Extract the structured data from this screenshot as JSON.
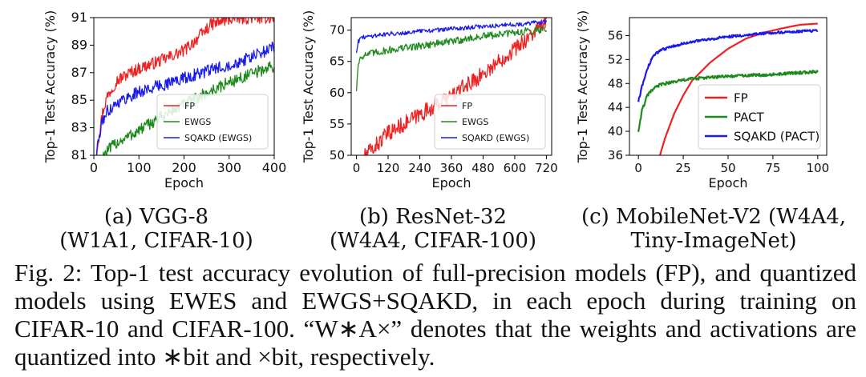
{
  "figure": {
    "caption": "Fig. 2: Top-1 test accuracy evolution of full-precision models (FP), and quantized models using EWES and EWGS+SQAKD, in each epoch during training on CIFAR-10 and CIFAR-100. “W∗A×” denotes that the weights and activations are quantized into ∗bit and ×bit, respectively."
  },
  "colors": {
    "FP": "#ee2222",
    "low_bit": "#1e8a1e",
    "SQAKD": "#1a1aee"
  },
  "chart_data": [
    {
      "type": "line",
      "subcaption": "(a) VGG-8\n(W1A1, CIFAR-10)",
      "xlabel": "Epoch",
      "ylabel": "Top-1 Test Accuracy (%)",
      "xlim": [
        0,
        400
      ],
      "ylim": [
        81,
        91
      ],
      "xticks": [
        0,
        100,
        200,
        300,
        400
      ],
      "yticks": [
        81,
        83,
        85,
        87,
        89,
        91
      ],
      "legend": "lower-right",
      "legend_size": "small",
      "series": [
        {
          "name": "FP",
          "color": "#ee2222",
          "noise": 0.45,
          "x": [
            5,
            10,
            20,
            30,
            50,
            80,
            100,
            150,
            200,
            230,
            260,
            300,
            350,
            400
          ],
          "y": [
            81.0,
            82.2,
            84.2,
            85.3,
            86.4,
            87.0,
            87.3,
            87.9,
            88.6,
            89.5,
            90.5,
            90.9,
            91.0,
            91.0
          ]
        },
        {
          "name": "EWGS",
          "color": "#1e8a1e",
          "noise": 0.45,
          "x": [
            20,
            30,
            50,
            100,
            150,
            200,
            250,
            300,
            350,
            400
          ],
          "y": [
            81.0,
            81.3,
            81.9,
            82.8,
            83.8,
            84.7,
            85.5,
            86.3,
            86.9,
            87.5
          ]
        },
        {
          "name": "SQAKD (EWGS)",
          "color": "#1a1aee",
          "noise": 0.45,
          "x": [
            5,
            10,
            20,
            30,
            50,
            100,
            150,
            200,
            250,
            300,
            350,
            400
          ],
          "y": [
            81.0,
            82.0,
            83.6,
            84.2,
            84.8,
            85.6,
            86.1,
            86.6,
            87.1,
            87.6,
            88.1,
            88.9
          ]
        }
      ]
    },
    {
      "type": "line",
      "subcaption": "(b) ResNet-32\n(W4A4, CIFAR-100)",
      "xlabel": "Epoch",
      "ylabel": "Top-1 Test Accuracy (%)",
      "xlim": [
        -20,
        740
      ],
      "ylim": [
        50,
        72
      ],
      "xticks": [
        0,
        120,
        240,
        360,
        480,
        600,
        720
      ],
      "yticks": [
        50,
        55,
        60,
        65,
        70
      ],
      "legend": "lower-right",
      "legend_size": "small",
      "series": [
        {
          "name": "FP",
          "color": "#ee2222",
          "noise": 1.3,
          "x": [
            30,
            60,
            120,
            240,
            360,
            480,
            600,
            720
          ],
          "y": [
            50.0,
            51.0,
            53.5,
            56.5,
            59.5,
            63.0,
            67.0,
            71.3
          ]
        },
        {
          "name": "EWGS",
          "color": "#1e8a1e",
          "noise": 0.6,
          "x": [
            0,
            5,
            15,
            30,
            60,
            120,
            240,
            360,
            480,
            600,
            720
          ],
          "y": [
            60.5,
            64.0,
            65.8,
            66.0,
            66.3,
            66.8,
            67.5,
            68.2,
            69.0,
            69.6,
            70.2
          ]
        },
        {
          "name": "SQAKD (EWGS)",
          "color": "#1a1aee",
          "noise": 0.35,
          "x": [
            0,
            5,
            15,
            30,
            60,
            120,
            240,
            360,
            480,
            600,
            720
          ],
          "y": [
            66.5,
            68.0,
            68.7,
            68.9,
            69.1,
            69.4,
            69.8,
            70.2,
            70.6,
            70.9,
            71.3
          ]
        }
      ]
    },
    {
      "type": "line",
      "subcaption": "(c) MobileNet-V2 (W4A4,\nTiny-ImageNet)",
      "xlabel": "Epoch",
      "ylabel": "Top-1 Test Accuracy (%)",
      "xlim": [
        -5,
        105
      ],
      "ylim": [
        36,
        59
      ],
      "xticks": [
        0,
        25,
        50,
        75,
        100
      ],
      "yticks": [
        36,
        40,
        44,
        48,
        52,
        56
      ],
      "legend": "lower-right",
      "legend_size": "large",
      "series": [
        {
          "name": "FP",
          "color": "#ee2222",
          "noise": 0,
          "x": [
            12,
            15,
            20,
            25,
            30,
            40,
            50,
            60,
            70,
            80,
            90,
            100
          ],
          "y": [
            36.0,
            39.0,
            43.0,
            46.0,
            48.5,
            51.5,
            53.8,
            55.5,
            56.5,
            57.2,
            57.8,
            58.0
          ]
        },
        {
          "name": "PACT",
          "color": "#1e8a1e",
          "noise": 0.25,
          "x": [
            0,
            2,
            5,
            8,
            12,
            20,
            30,
            50,
            75,
            100
          ],
          "y": [
            40.0,
            43.5,
            46.0,
            47.0,
            47.8,
            48.3,
            48.8,
            49.2,
            49.5,
            50.0
          ]
        },
        {
          "name": "SQAKD (PACT)",
          "color": "#1a1aee",
          "noise": 0.2,
          "x": [
            0,
            2,
            5,
            8,
            12,
            20,
            30,
            50,
            75,
            100
          ],
          "y": [
            45.0,
            47.5,
            50.5,
            52.5,
            53.5,
            54.3,
            55.0,
            55.8,
            56.5,
            56.8
          ]
        }
      ]
    }
  ]
}
